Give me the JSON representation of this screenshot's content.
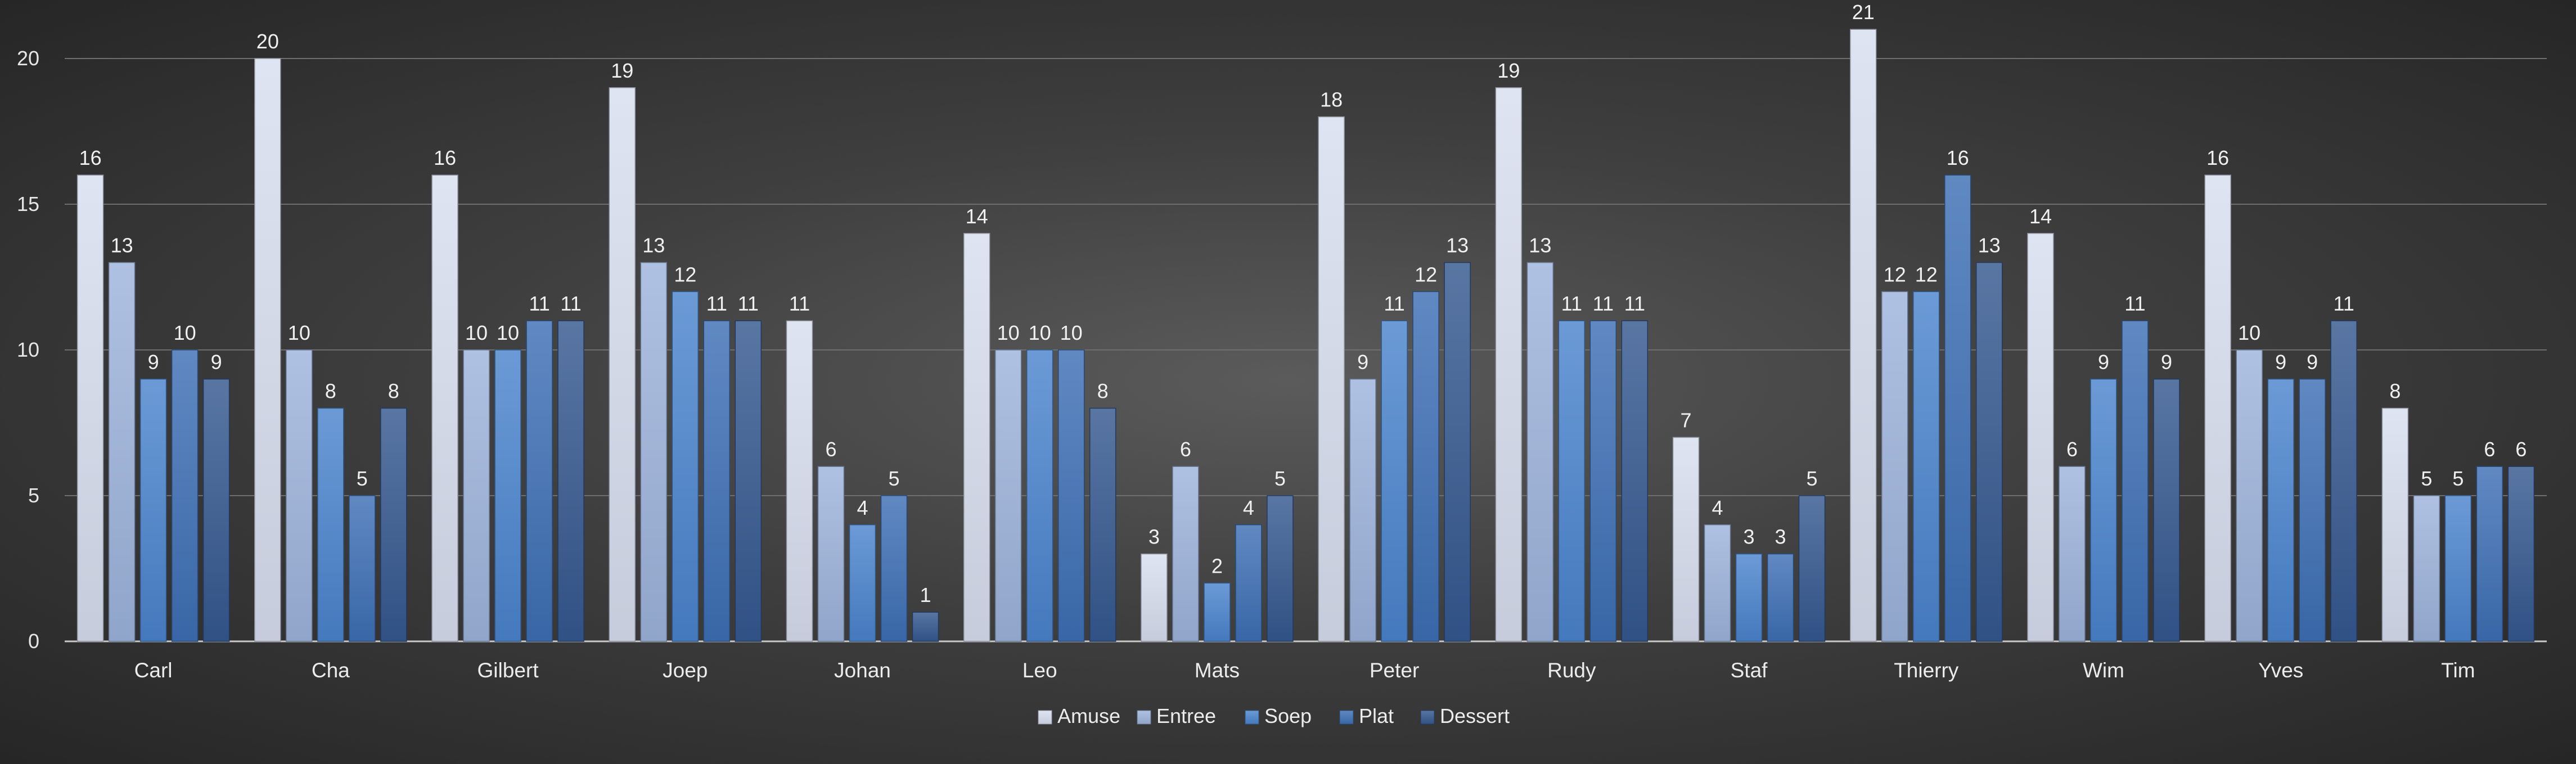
{
  "chart_data": {
    "type": "bar",
    "title": "",
    "xlabel": "",
    "ylabel": "",
    "ylim": [
      0,
      21
    ],
    "yticks": [
      0,
      5,
      10,
      15,
      20
    ],
    "grid": true,
    "legend_position": "bottom",
    "categories": [
      "Carl",
      "Cha",
      "Gilbert",
      "Joep",
      "Johan",
      "Leo",
      "Mats",
      "Peter",
      "Rudy",
      "Staf",
      "Thierry",
      "Wim",
      "Yves",
      "Tim"
    ],
    "series": [
      {
        "name": "Amuse",
        "color": "#d7deee",
        "values": [
          16,
          20,
          16,
          19,
          11,
          14,
          3,
          18,
          19,
          7,
          21,
          14,
          16,
          8
        ]
      },
      {
        "name": "Entree",
        "color": "#9db3dc",
        "values": [
          13,
          10,
          10,
          13,
          6,
          10,
          6,
          9,
          13,
          4,
          12,
          6,
          10,
          5
        ]
      },
      {
        "name": "Soep",
        "color": "#4a84cd",
        "values": [
          9,
          8,
          10,
          12,
          4,
          10,
          2,
          11,
          11,
          3,
          12,
          9,
          9,
          5
        ]
      },
      {
        "name": "Plat",
        "color": "#3d6fb4",
        "values": [
          10,
          5,
          11,
          11,
          5,
          10,
          4,
          12,
          11,
          3,
          16,
          11,
          9,
          6
        ]
      },
      {
        "name": "Dessert",
        "color": "#34588f",
        "values": [
          9,
          8,
          11,
          11,
          1,
          8,
          5,
          13,
          11,
          5,
          13,
          9,
          11,
          6
        ]
      }
    ]
  }
}
